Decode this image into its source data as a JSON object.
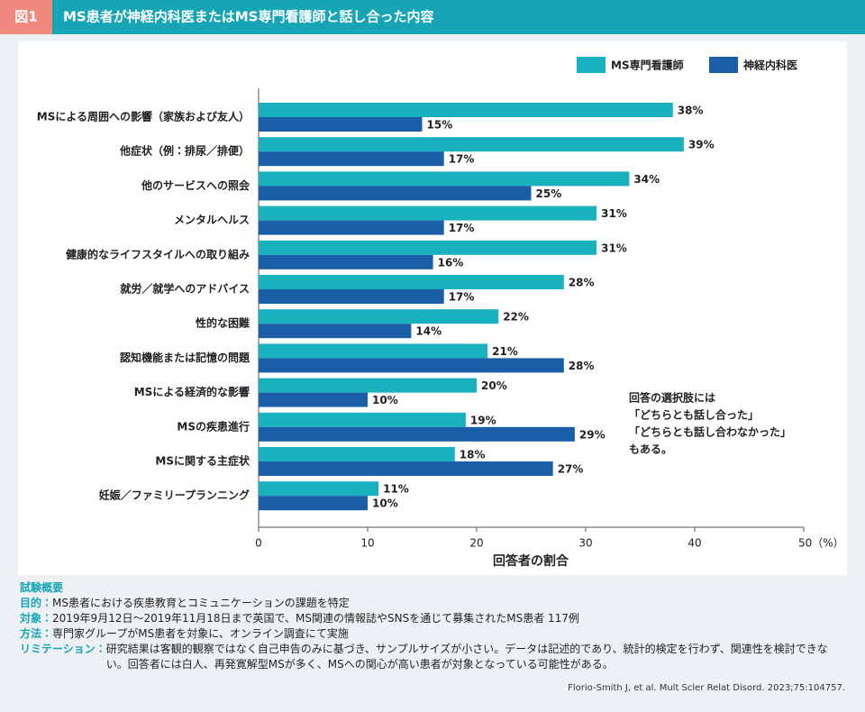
{
  "chart_data": {
    "type": "bar",
    "orientation": "horizontal",
    "figure_label": "図1",
    "title": "MS患者が神経内科医またはMS専門看護師と話し合った内容",
    "categories": [
      "MSによる周囲への影響（家族および友人）",
      "他症状（例：排尿／排便）",
      "他のサービスへの照会",
      "メンタルヘルス",
      "健康的なライフスタイルへの取り組み",
      "就労／就学へのアドバイス",
      "性的な困難",
      "認知機能または記憶の問題",
      "MSによる経済的な影響",
      "MSの疾患進行",
      "MSに関する主症状",
      "妊娠／ファミリープランニング"
    ],
    "series": [
      {
        "name": "MS専門看護師",
        "color": "#1ab1bf",
        "values": [
          38,
          39,
          34,
          31,
          31,
          28,
          22,
          21,
          20,
          19,
          18,
          11
        ],
        "value_labels": [
          "38%",
          "39%",
          "34%",
          "31%",
          "31%",
          "28%",
          "22%",
          "21%",
          "20%",
          "19%",
          "18%",
          "11%"
        ]
      },
      {
        "name": "神経内科医",
        "color": "#1a5ea8",
        "values": [
          15,
          17,
          25,
          17,
          16,
          17,
          14,
          28,
          10,
          29,
          27,
          10
        ],
        "value_labels": [
          "15%",
          "17%",
          "25%",
          "17%",
          "16%",
          "17%",
          "14%",
          "28%",
          "10%",
          "29%",
          "27%",
          "10%"
        ]
      }
    ],
    "xlim": [
      0,
      50
    ],
    "xticks": [
      0,
      10,
      20,
      30,
      40,
      {
        "value": 50,
        "label": "50（%）"
      }
    ],
    "xlabel": "回答者の割合",
    "legend": "top-right",
    "annotation": [
      "回答の選択肢には",
      "「どちらとも話し合った」",
      "「どちらとも話し合わなかった」",
      "もある。"
    ]
  },
  "footer": {
    "heading": "試験概要",
    "items": [
      {
        "label": "目的：",
        "text": "MS患者における疾患教育とコミュニケーションの課題を特定"
      },
      {
        "label": "対象：",
        "text": "2019年9月12日～2019年11月18日まで英国で、MS関連の情報誌やSNSを通じて募集されたMS患者 117例"
      },
      {
        "label": "方法：",
        "text": "専門家グループがMS患者を対象に、オンライン調査にて実施"
      },
      {
        "label": "リミテーション：",
        "text": "研究結果は客観的観察ではなく自己申告のみに基づき、サンプルサイズが小さい。データは記述的であり、統計的検定を行わず、関連性を検討できない。回答者には白人、再発寛解型MSが多く、MSへの関心が高い患者が対象となっている可能性がある。"
      }
    ],
    "citation": "Florio-Smith J, et al. Mult Scler Relat Disord. 2023;75:104757."
  }
}
